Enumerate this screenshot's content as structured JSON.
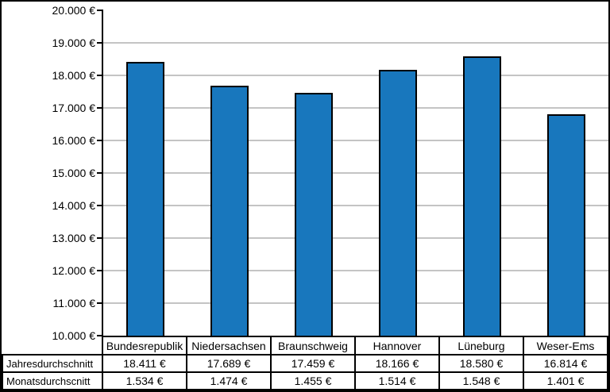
{
  "chart_data": {
    "type": "bar",
    "title": "",
    "xlabel": "",
    "ylabel": "",
    "categories": [
      "Bundesrepublik",
      "Niedersachsen",
      "Braunschweig",
      "Hannover",
      "Lüneburg",
      "Weser-Ems"
    ],
    "series": [
      {
        "name": "Jahresdurchschnitt",
        "values": [
          18411,
          17689,
          17459,
          18166,
          18580,
          16814
        ],
        "display": [
          "18.411 €",
          "17.689 €",
          "17.459 €",
          "18.166 €",
          "18.580 €",
          "16.814 €"
        ],
        "plotted_as_bars": true
      },
      {
        "name": "Monatsdurchscnitt",
        "values": [
          1534,
          1474,
          1455,
          1514,
          1548,
          1401
        ],
        "display": [
          "1.534 €",
          "1.474 €",
          "1.455 €",
          "1.514 €",
          "1.548 €",
          "1.401 €"
        ],
        "plotted_as_bars": false
      }
    ],
    "ylim": [
      10000,
      20000
    ],
    "ytick_step": 1000,
    "y_tick_labels": [
      "20.000 €",
      "19.000 €",
      "18.000 €",
      "17.000 €",
      "16.000 €",
      "15.000 €",
      "14.000 €",
      "13.000 €",
      "12.000 €",
      "11.000 €",
      "10.000 €"
    ],
    "grid": true,
    "legend_position": "none",
    "data_table_attached": true,
    "colors": {
      "bar_fill": "#1877BD",
      "bar_border": "#000000",
      "gridline": "#c4c4c4",
      "axis": "#000000",
      "background": "#ffffff"
    }
  }
}
